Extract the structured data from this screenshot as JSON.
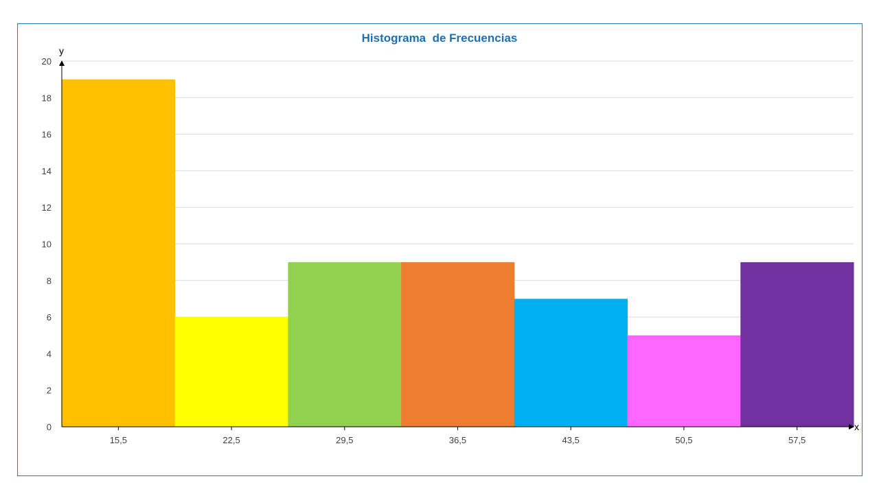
{
  "chart_data": {
    "type": "bar",
    "title": "Histograma  de Frecuencias",
    "xlabel": "x",
    "ylabel": "y",
    "categories": [
      "15,5",
      "22,5",
      "29,5",
      "36,5",
      "43,5",
      "50,5",
      "57,5"
    ],
    "values": [
      19,
      6,
      9,
      9,
      7,
      5,
      9
    ],
    "bar_colors": [
      "#ffc000",
      "#ffff00",
      "#92d050",
      "#ed7d31",
      "#00b0f0",
      "#ff66ff",
      "#7030a0"
    ],
    "yticks": [
      "0",
      "2",
      "4",
      "6",
      "8",
      "10",
      "12",
      "14",
      "16",
      "18",
      "20"
    ],
    "ylim": [
      0,
      20
    ],
    "grid": true,
    "legend": "none"
  }
}
